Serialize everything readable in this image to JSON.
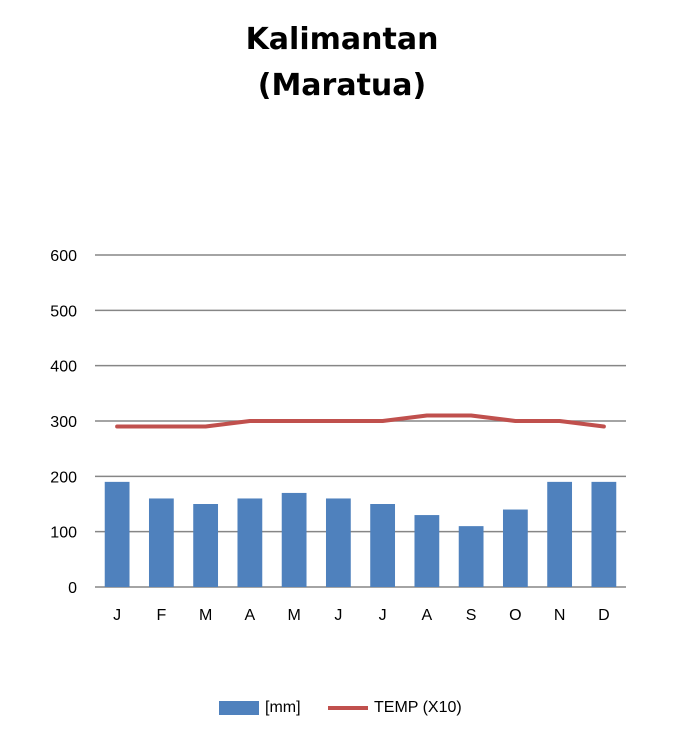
{
  "colors": {
    "bar": "#4f81bd",
    "line": "#c0504d",
    "grid": "#868686"
  },
  "chart_data": {
    "type": "bar",
    "title_lines": [
      "Kalimantan",
      "(Maratua)"
    ],
    "xlabel": "",
    "ylabel": "",
    "categories": [
      "J",
      "F",
      "M",
      "A",
      "M",
      "J",
      "J",
      "A",
      "S",
      "O",
      "N",
      "D"
    ],
    "ylim": [
      0,
      600
    ],
    "yticks": [
      0,
      100,
      200,
      300,
      400,
      500,
      600
    ],
    "grid": true,
    "legend_position": "bottom",
    "series": [
      {
        "name": "[mm]",
        "type": "bar",
        "values": [
          190,
          160,
          150,
          160,
          170,
          160,
          150,
          130,
          110,
          140,
          190,
          190
        ]
      },
      {
        "name": "TEMP (X10)",
        "type": "line",
        "values": [
          290,
          290,
          290,
          300,
          300,
          300,
          300,
          310,
          310,
          300,
          300,
          290
        ]
      }
    ]
  }
}
